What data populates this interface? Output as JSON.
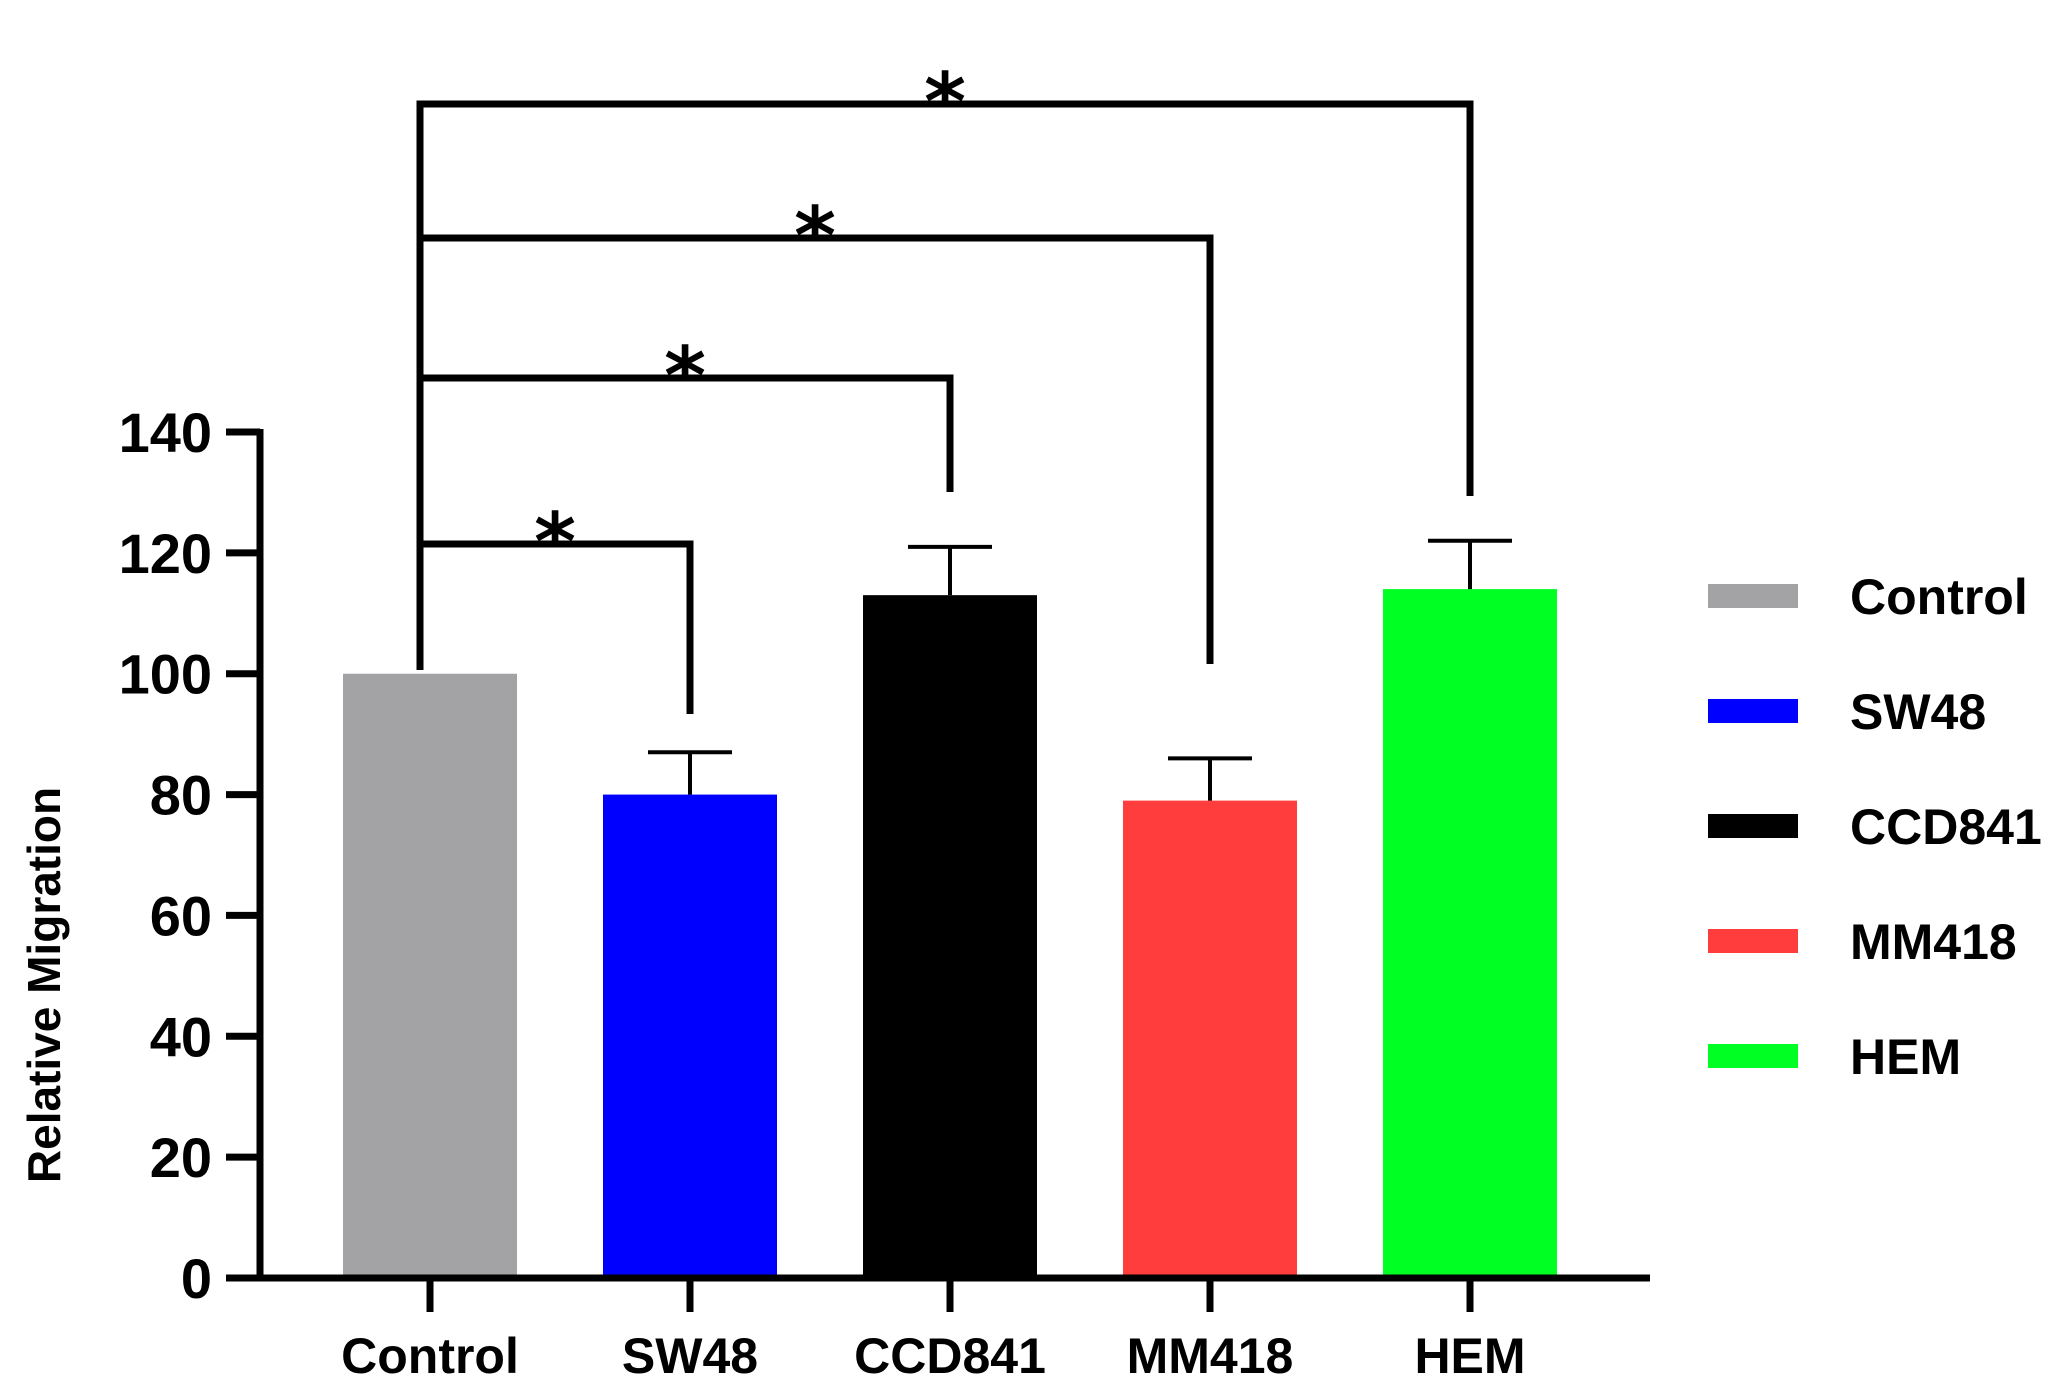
{
  "chart_data": {
    "type": "bar",
    "title": "",
    "xlabel": "",
    "ylabel": "Relative Migration",
    "ylim": [
      0,
      140
    ],
    "yticks": [
      0,
      20,
      40,
      60,
      80,
      100,
      120,
      140
    ],
    "grid": false,
    "legend_position": "right",
    "categories": [
      "Control",
      "SW48",
      "CCD841",
      "MM418",
      "HEM"
    ],
    "values": [
      100,
      80,
      113,
      79,
      114
    ],
    "errors": [
      0,
      7,
      8,
      7,
      8
    ],
    "colors": [
      "#a3a3a6",
      "#0000ff",
      "#000000",
      "#ff3d3d",
      "#00ff22"
    ],
    "legend": [
      "Control",
      "SW48",
      "CCD841",
      "MM418",
      "HEM"
    ],
    "annotations": [
      {
        "from": "Control",
        "to": "SW48",
        "label": "*"
      },
      {
        "from": "Control",
        "to": "CCD841",
        "label": "*"
      },
      {
        "from": "Control",
        "to": "MM418",
        "label": "*"
      },
      {
        "from": "Control",
        "to": "HEM",
        "label": "*"
      }
    ]
  }
}
